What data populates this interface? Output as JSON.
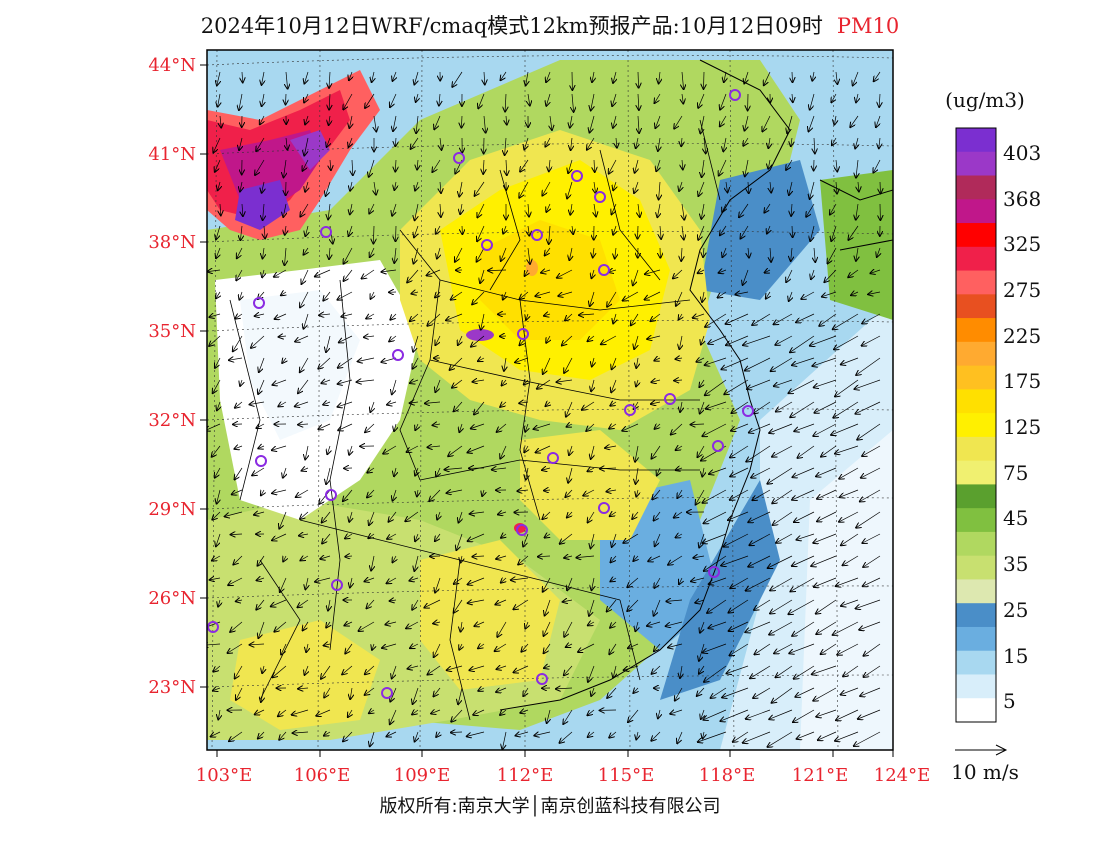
{
  "title": {
    "main": "2024年10月12日WRF/cmaq模式12km预报产品:10月12日09时",
    "pollutant": "PM10"
  },
  "axes": {
    "lat_labels": [
      "44°N",
      "41°N",
      "38°N",
      "35°N",
      "32°N",
      "29°N",
      "26°N",
      "23°N"
    ],
    "lon_labels": [
      "103°E",
      "106°E",
      "109°E",
      "112°E",
      "115°E",
      "118°E",
      "121°E",
      "124°E"
    ]
  },
  "colorbar": {
    "unit": "(ug/m3)",
    "labels": [
      "403",
      "368",
      "325",
      "275",
      "225",
      "175",
      "125",
      "75",
      "45",
      "35",
      "25",
      "15",
      "5"
    ],
    "colors": [
      "#7b2fd0",
      "#9b38c8",
      "#b02a5a",
      "#c0178a",
      "#ff0000",
      "#f0204a",
      "#ff6060",
      "#e85020",
      "#ff8c00",
      "#ffaa30",
      "#ffc020",
      "#ffe000",
      "#fff000",
      "#f0e650",
      "#f0f070",
      "#5aa02e",
      "#80c040",
      "#b0d860",
      "#c8e070",
      "#dde8b0",
      "#4a8ec8",
      "#6aaee0",
      "#a8d8f0",
      "#d8eefa",
      "#ffffff"
    ]
  },
  "wind_legend": {
    "label": "10 m/s"
  },
  "copyright": "版权所有:南京大学│南京创蓝科技有限公司"
}
